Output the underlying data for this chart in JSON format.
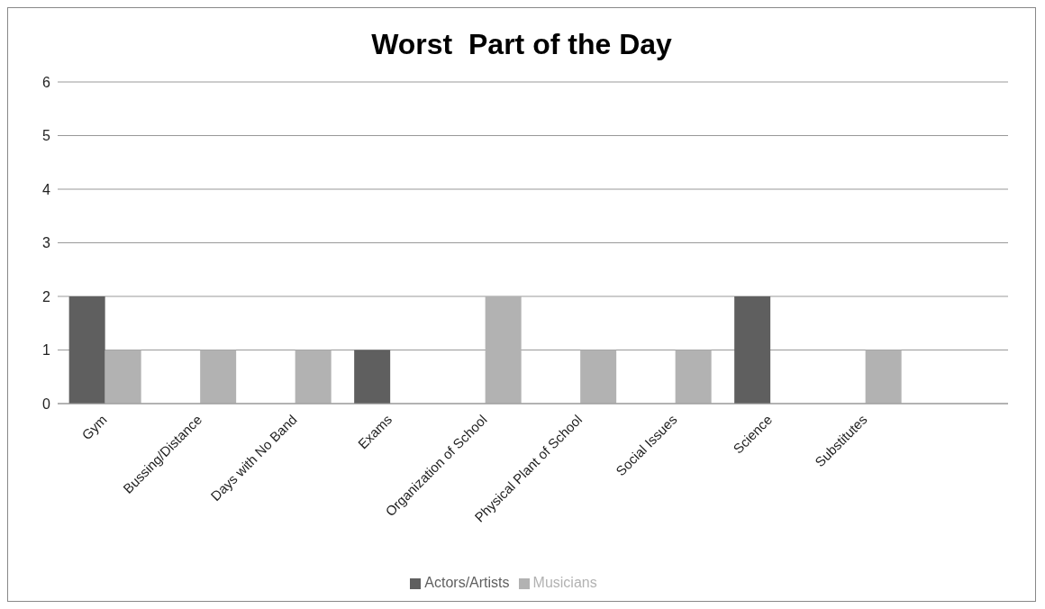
{
  "chart_data": {
    "type": "bar",
    "title": "Worst  Part of the Day",
    "categories": [
      "Gym",
      "Bussing/Distance",
      "Days with No Band",
      "Exams",
      "Organization of School",
      "Physical Plant of School",
      "Social Issues",
      "Science",
      "Substitutes",
      null
    ],
    "series": [
      {
        "name": "Actors/Artists",
        "color": "#5f5f5f",
        "values": [
          2,
          null,
          null,
          1,
          null,
          null,
          null,
          2,
          null,
          null
        ]
      },
      {
        "name": "Musicians",
        "color": "#b2b2b2",
        "values": [
          1,
          1,
          1,
          null,
          2,
          1,
          1,
          null,
          1,
          null
        ]
      }
    ],
    "ylim": [
      0,
      6
    ],
    "yticks": [
      0,
      1,
      2,
      3,
      4,
      5,
      6
    ],
    "grid": "y",
    "legend": "bottom"
  }
}
